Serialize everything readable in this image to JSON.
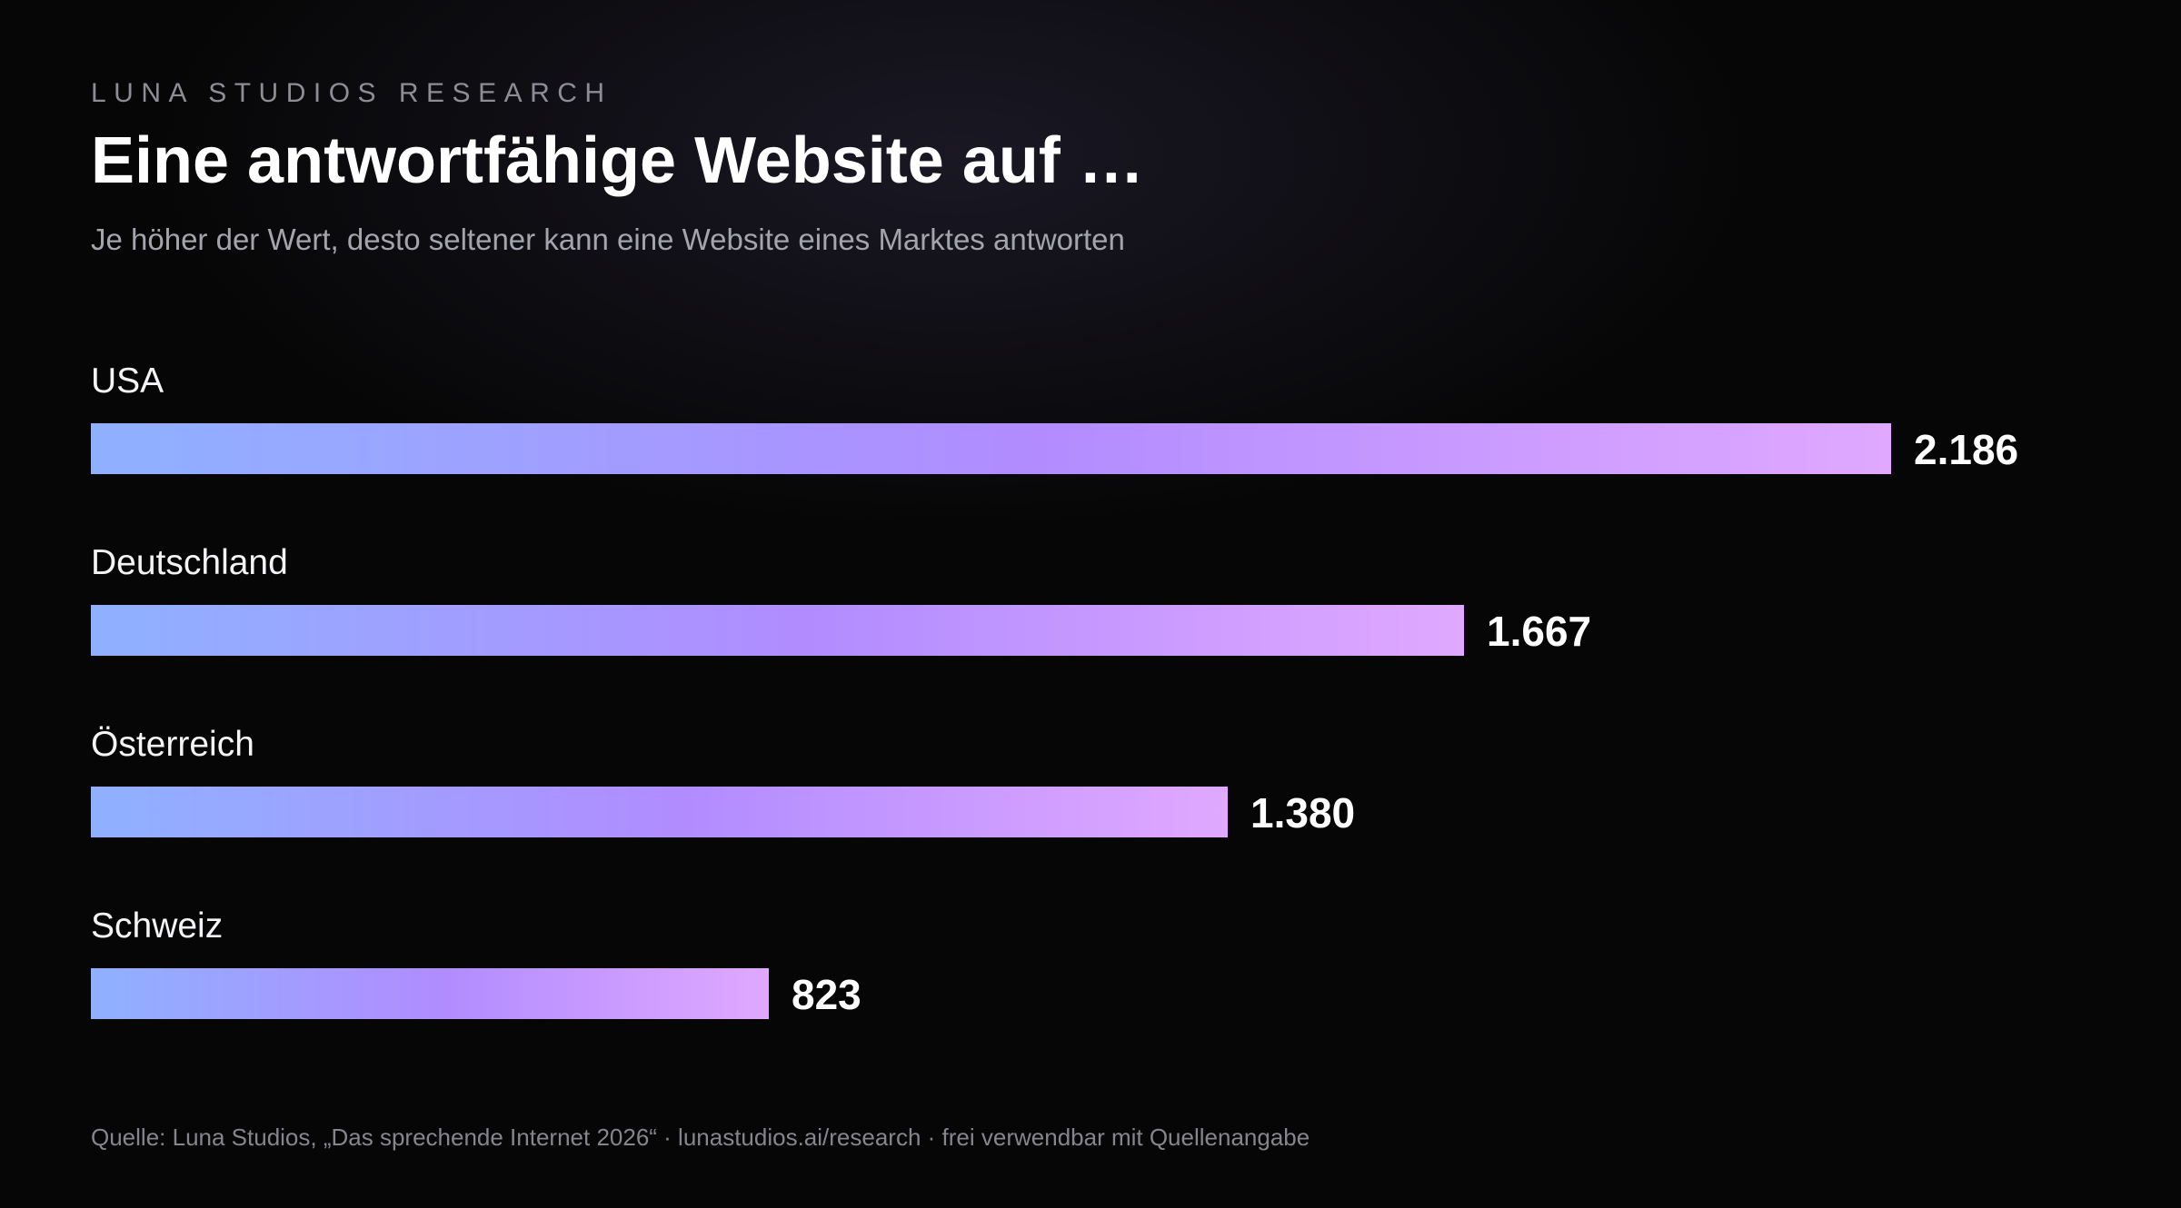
{
  "header": {
    "kicker": "LUNA STUDIOS RESEARCH",
    "title": "Eine antwortfähige Website auf …",
    "subtitle": "Je höher der Wert, desto seltener kann eine Website eines Marktes antworten"
  },
  "chart_data": {
    "type": "bar",
    "orientation": "horizontal",
    "title": "Eine antwortfähige Website auf …",
    "subtitle": "Je höher der Wert, desto seltener kann eine Website eines Marktes antworten",
    "categories": [
      "USA",
      "Deutschland",
      "Österreich",
      "Schweiz"
    ],
    "values": [
      2186,
      1667,
      1380,
      823
    ],
    "value_labels": [
      "2.186",
      "1.667",
      "1.380",
      "823"
    ],
    "xlabel": "",
    "ylabel": "",
    "xlim": [
      0,
      2186
    ],
    "grid": false,
    "legend": "none",
    "colors": {
      "gradient_start": "#8fb1ff",
      "gradient_mid": "#b18cff",
      "gradient_end": "#e0a8ff"
    }
  },
  "footer": {
    "source": "Quelle: Luna Studios, „Das sprechende Internet 2026“ · lunastudios.ai/research · frei verwendbar mit Quellenangabe"
  }
}
